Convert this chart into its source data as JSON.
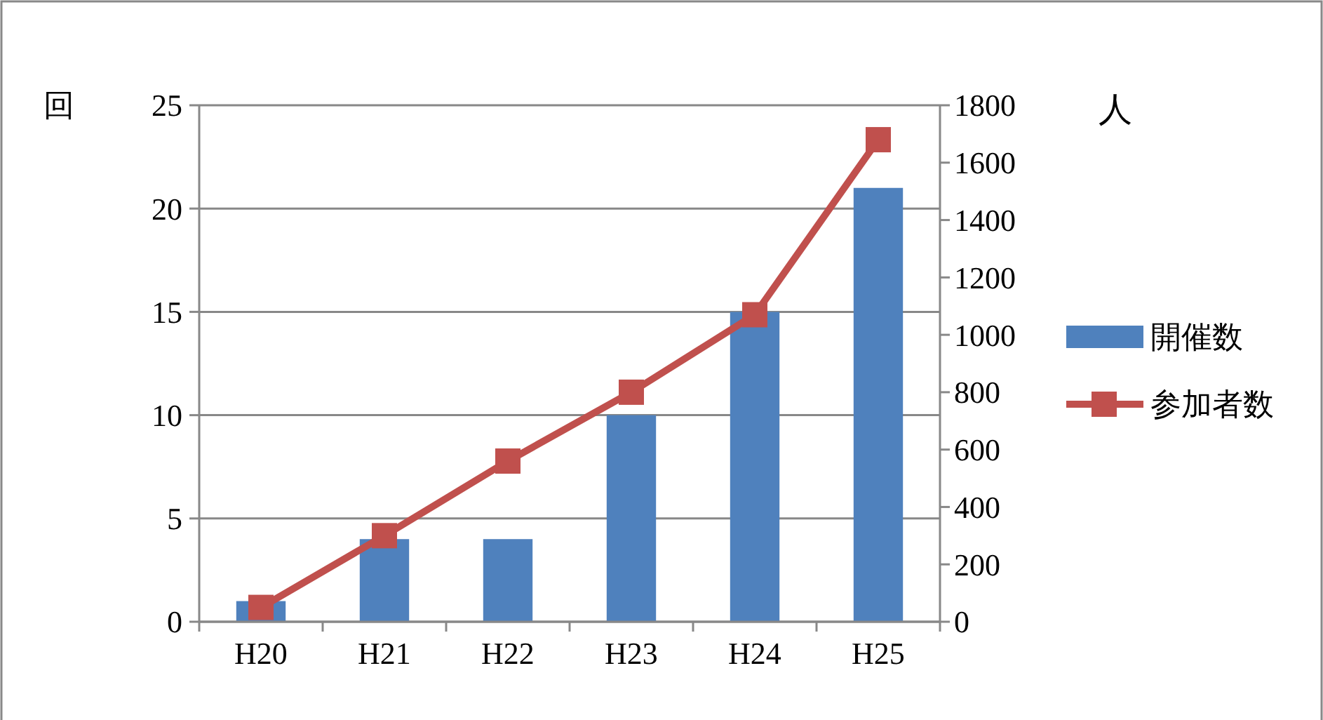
{
  "chart_data": {
    "type": "bar",
    "categories": [
      "H20",
      "H21",
      "H22",
      "H23",
      "H24",
      "H25"
    ],
    "ylabel": "回",
    "y2label": "人",
    "series": [
      {
        "name": "開催数",
        "color": "#4f81bd",
        "values": [
          1,
          4,
          4,
          10,
          15,
          21
        ]
      },
      {
        "name": "参加者数",
        "type": "line",
        "axis": "y2",
        "color": "#c0504d",
        "marker": "square",
        "values": [
          50,
          300,
          560,
          800,
          1070,
          1680
        ]
      }
    ],
    "ylim": [
      0,
      25
    ],
    "yticks": [
      0,
      5,
      10,
      15,
      20,
      25
    ],
    "y2lim": [
      0,
      1800
    ],
    "y2ticks": [
      0,
      200,
      400,
      600,
      800,
      1000,
      1200,
      1400,
      1600,
      1800
    ],
    "grid": "y",
    "legend": "right"
  }
}
